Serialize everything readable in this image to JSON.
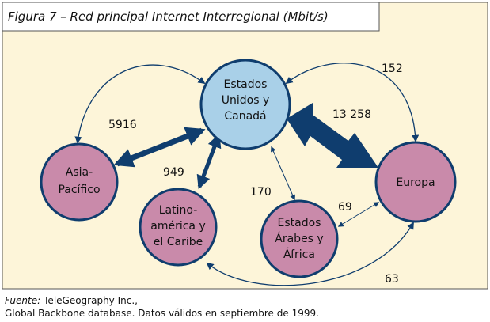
{
  "title": "Figura 7 – Red principal Internet Interregional (Mbit/s)",
  "nodes": [
    {
      "lines": [
        "Estados",
        "Unidos y",
        "Canadá"
      ]
    },
    {
      "lines": [
        "Asia-",
        "Pacífico"
      ]
    },
    {
      "lines": [
        "Europa"
      ]
    },
    {
      "lines": [
        "Latino-",
        "américa y",
        "el Caribe"
      ]
    },
    {
      "lines": [
        "Estados",
        "Árabes y",
        "África"
      ]
    }
  ],
  "edges": [
    {
      "label": "152"
    },
    {
      "label": "5916"
    },
    {
      "label": "13 258"
    },
    {
      "label": "949"
    },
    {
      "label": "170"
    },
    {
      "label": "69"
    },
    {
      "label": "63"
    }
  ],
  "source": {
    "label": "Fuente:",
    "line1": "TeleGeography Inc.,",
    "line2": "Global Backbone database. Datos válidos en septiembre de 1999."
  }
}
